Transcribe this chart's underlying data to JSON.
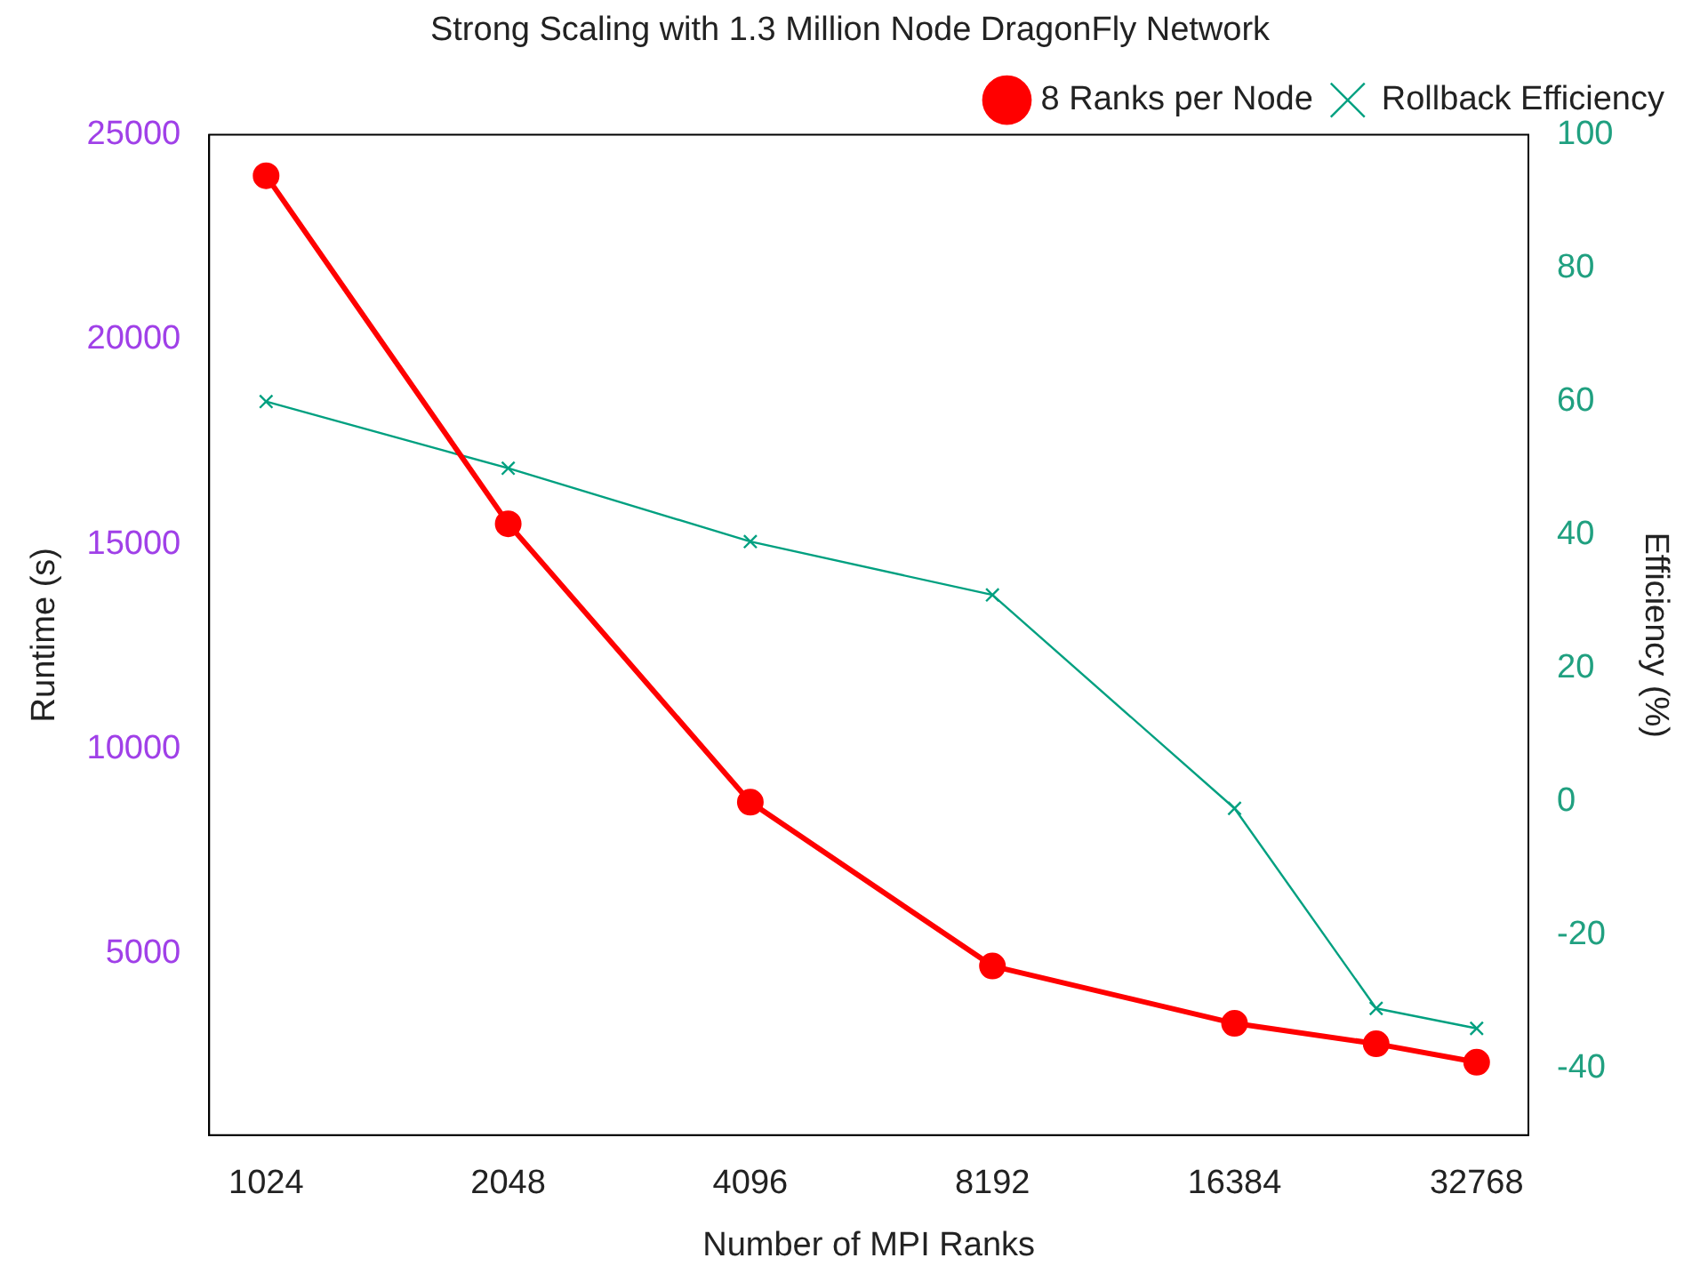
{
  "chart_data": {
    "type": "line",
    "title": "Strong Scaling with 1.3 Million Node DragonFly Network",
    "xlabel": "Number of MPI Ranks",
    "ylabel": "Runtime (s)",
    "y2label": "Efficiency (%)",
    "log": "x",
    "xlim": [
      870,
      38000
    ],
    "xticks": [
      1024,
      2048,
      4096,
      8192,
      16384,
      32768
    ],
    "ylim": [
      570,
      25000
    ],
    "yticks": [
      5000,
      10000,
      15000,
      20000,
      25000
    ],
    "y2lim": [
      -50,
      100
    ],
    "y2ticks": [
      -40,
      -20,
      0,
      20,
      40,
      60,
      80,
      100
    ],
    "grid": false,
    "legend": "top right",
    "series": [
      {
        "name": "8 Ranks per Node",
        "color": "#ff0000",
        "marker": "circle",
        "x": [
          1024,
          2048,
          4096,
          8192,
          16384,
          24576,
          32768
        ],
        "values": [
          24000,
          15500,
          8700,
          4700,
          3300,
          2800,
          2350
        ]
      },
      {
        "name": "Rollback Efficiency",
        "color": "#00a080",
        "marker": "cross",
        "axis": "y2",
        "x": [
          1024,
          2048,
          4096,
          8192,
          16384,
          24576,
          32768
        ],
        "values": [
          60,
          50,
          39,
          31,
          -1,
          -31,
          -34
        ]
      }
    ]
  }
}
